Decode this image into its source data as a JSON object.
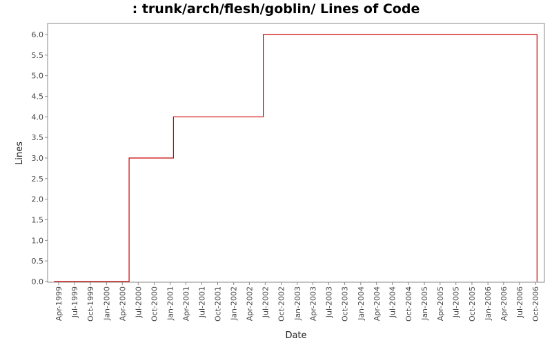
{
  "chart_data": {
    "type": "line",
    "line_style": "step",
    "title": ": trunk/arch/flesh/goblin/ Lines of Code",
    "xlabel": "Date",
    "ylabel": "Lines",
    "ylim": [
      0,
      6.0
    ],
    "y_ticks": [
      "0.0",
      "0.5",
      "1.0",
      "1.5",
      "2.0",
      "2.5",
      "3.0",
      "3.5",
      "4.0",
      "4.5",
      "5.0",
      "5.5",
      "6.0"
    ],
    "x_ticks": [
      "Apr-1999",
      "Jul-1999",
      "Oct-1999",
      "Jan-2000",
      "Apr-2000",
      "Jul-2000",
      "Oct-2000",
      "Jan-2001",
      "Apr-2001",
      "Jul-2001",
      "Oct-2001",
      "Jan-2002",
      "Apr-2002",
      "Jul-2002",
      "Oct-2002",
      "Jan-2003",
      "Apr-2003",
      "Jul-2003",
      "Oct-2003",
      "Jan-2004",
      "Apr-2004",
      "Jul-2004",
      "Oct-2004",
      "Jan-2005",
      "Apr-2005",
      "Jul-2005",
      "Oct-2005",
      "Jan-2006",
      "Apr-2006",
      "Jul-2006",
      "Oct-2006"
    ],
    "grid": false,
    "legend": "none",
    "series": [
      {
        "color": "#cc0000",
        "points": [
          {
            "x": "1999-03-05",
            "y": 0
          },
          {
            "x": "2000-05-10",
            "y": 0
          },
          {
            "x": "2000-05-10",
            "y": 3
          },
          {
            "x": "2001-01-20",
            "y": 3
          },
          {
            "x": "2001-01-20",
            "y": 4
          },
          {
            "x": "2002-06-20",
            "y": 4
          },
          {
            "x": "2002-06-20",
            "y": 6
          },
          {
            "x": "2006-10-10",
            "y": 6
          },
          {
            "x": "2006-10-10",
            "y": 0
          }
        ]
      }
    ]
  }
}
